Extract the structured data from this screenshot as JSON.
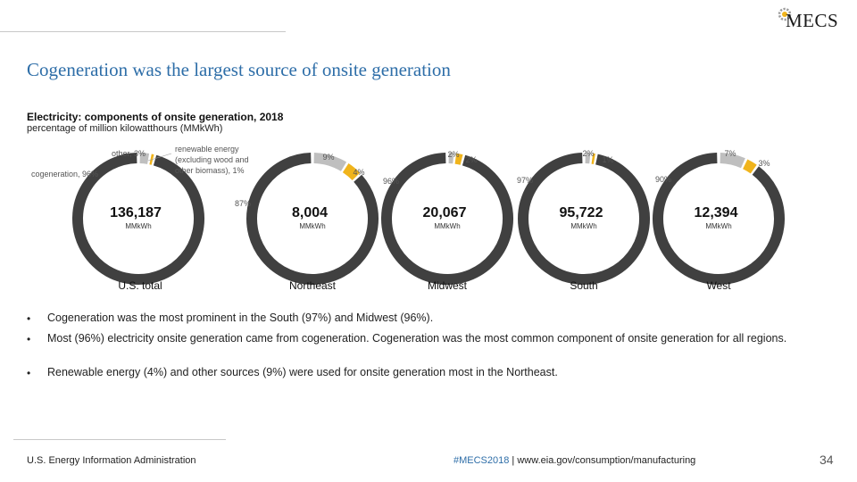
{
  "header": {
    "logo_text": "MECS"
  },
  "slide_title": "Cogeneration was the largest source of onsite generation",
  "chart_title": "Electricity: components of onsite generation, 2018",
  "chart_subtitle": "percentage of million kilowatthours (MMkWh)",
  "colors": {
    "cogeneration": "#404040",
    "other": "#bfbfbf",
    "renewable": "#f0b41c",
    "title": "#2e6ea8"
  },
  "chart_data": {
    "type": "pie",
    "variant": "donut",
    "title": "Electricity: components of onsite generation, 2018",
    "subtitle": "percentage of million kilowatthours (MMkWh)",
    "unit": "MMkWh",
    "components": [
      "cogeneration",
      "other",
      "renewable energy (excluding wood and other biomass)"
    ],
    "charts": [
      {
        "region": "U.S. total",
        "total": "136,187",
        "total_value": 136187,
        "values": {
          "cogeneration": 96,
          "other": 3,
          "renewable": 1
        },
        "labels": {
          "cogeneration": "cogeneration, 96%",
          "other": "other, 3%",
          "renewable": "renewable energy (excluding wood and other biomass), 1%"
        }
      },
      {
        "region": "Northeast",
        "total": "8,004",
        "total_value": 8004,
        "values": {
          "cogeneration": 87,
          "other": 9,
          "renewable": 4
        },
        "labels": {
          "cogeneration": "87%",
          "other": "9%",
          "renewable": "4%"
        }
      },
      {
        "region": "Midwest",
        "total": "20,067",
        "total_value": 20067,
        "values": {
          "cogeneration": 96,
          "other": 2,
          "renewable": 2
        },
        "labels": {
          "cogeneration": "96%",
          "other": "2%",
          "renewable": "2%"
        }
      },
      {
        "region": "South",
        "total": "95,722",
        "total_value": 95722,
        "values": {
          "cogeneration": 97,
          "other": 2,
          "renewable": 1
        },
        "labels": {
          "cogeneration": "97%",
          "other": "2%",
          "renewable": "1%"
        }
      },
      {
        "region": "West",
        "total": "12,394",
        "total_value": 12394,
        "values": {
          "cogeneration": 90,
          "other": 7,
          "renewable": 3
        },
        "labels": {
          "cogeneration": "90%",
          "other": "7%",
          "renewable": "3%"
        }
      }
    ]
  },
  "bullets": [
    "Cogeneration was the most prominent in the South (97%) and Midwest (96%).",
    "Most (96%) electricity onsite generation came from cogeneration. Cogeneration was the most common component of onsite generation for all regions.",
    "Renewable energy (4%) and other sources (9%) were used for onsite generation most in the Northeast."
  ],
  "bullet_symbol": "•",
  "footer": {
    "source": "U.S. Energy Information Administration",
    "hashtag": "#MECS2018",
    "separator": " | ",
    "url": "www.eia.gov/consumption/manufacturing",
    "page": "34"
  }
}
